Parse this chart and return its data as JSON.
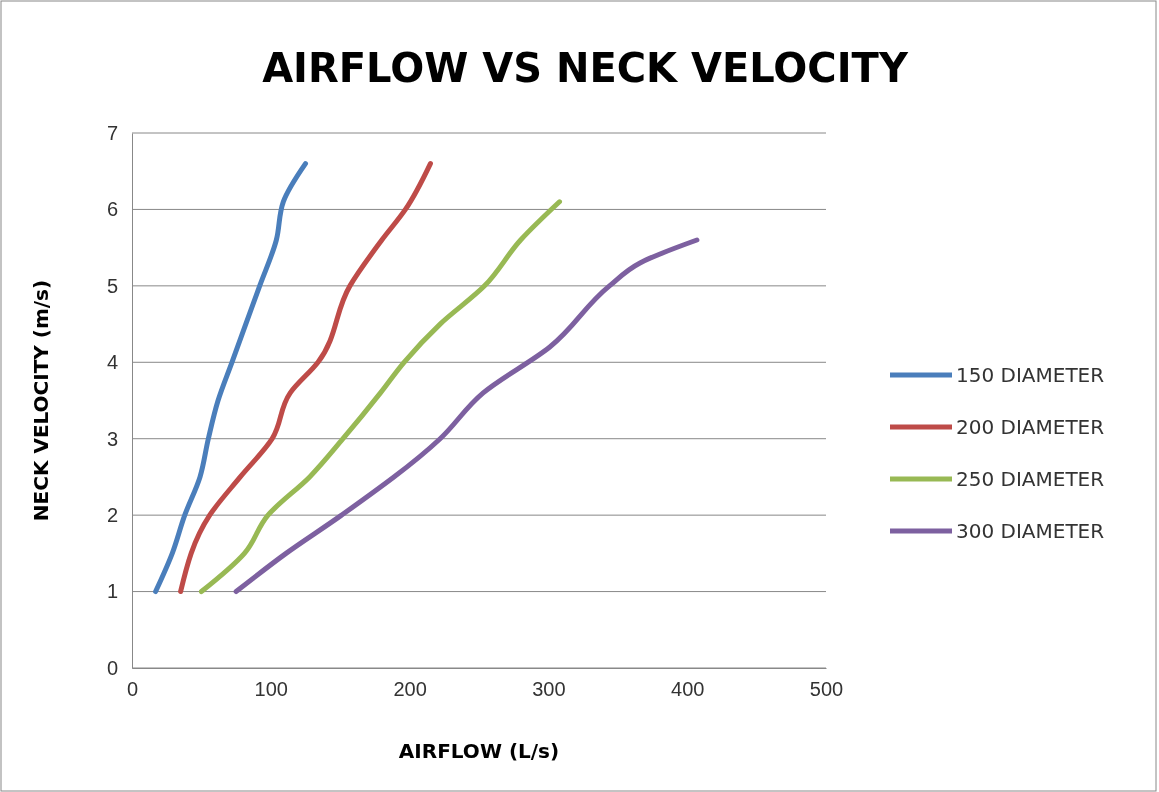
{
  "chart_data": {
    "type": "line",
    "title": "AIRFLOW VS NECK VELOCITY",
    "xlabel": "AIRFLOW (L/s)",
    "ylabel": "NECK VELOCITY (m/s)",
    "xlim": [
      0,
      500
    ],
    "xticks": [
      0,
      100,
      200,
      300,
      400,
      500
    ],
    "ylim": [
      0,
      7
    ],
    "yticks": [
      0,
      1,
      2,
      3,
      4,
      5,
      6,
      7
    ],
    "grid": "y",
    "legend": "right",
    "marker": "none",
    "line_style": "solid",
    "series": [
      {
        "name": "150 DIAMETER",
        "color": "#4a7ebb",
        "x": [
          17,
          29,
          38,
          49,
          55,
          62,
          72,
          92,
          104,
          109,
          125
        ],
        "values": [
          1,
          1.5,
          2,
          2.5,
          3,
          3.5,
          4,
          5,
          5.6,
          6.1,
          6.6
        ]
      },
      {
        "name": "200 DIAMETER",
        "color": "#be4b48",
        "x": [
          35,
          56,
          78,
          101,
          114,
          134,
          157,
          180,
          197,
          215
        ],
        "values": [
          1,
          2,
          2.5,
          3,
          3.6,
          4,
          5,
          5.6,
          6,
          6.6
        ]
      },
      {
        "name": "250 DIAMETER",
        "color": "#98b954",
        "x": [
          50,
          81,
          98,
          128,
          152,
          179,
          196,
          222,
          254,
          280,
          308
        ],
        "values": [
          1,
          1.5,
          2,
          2.5,
          3,
          3.6,
          4,
          4.5,
          5,
          5.6,
          6.1
        ]
      },
      {
        "name": "300 DIAMETER",
        "color": "#7d60a0",
        "x": [
          75,
          111,
          151,
          222,
          253,
          301,
          344,
          366,
          407
        ],
        "values": [
          1,
          1.5,
          2,
          3,
          3.6,
          4.2,
          5,
          5.3,
          5.6
        ]
      }
    ]
  }
}
